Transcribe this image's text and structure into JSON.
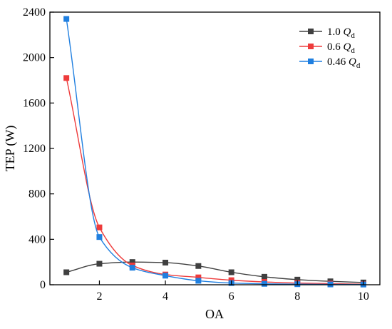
{
  "chart_data": {
    "type": "line",
    "xlabel": "OA",
    "ylabel": "TEP (W)",
    "xlim": [
      0.5,
      10.5
    ],
    "ylim": [
      0,
      2400
    ],
    "x_ticks": [
      2,
      4,
      6,
      8,
      10
    ],
    "y_ticks": [
      0,
      400,
      800,
      1200,
      1600,
      2000,
      2400
    ],
    "grid": false,
    "legend_position": "top-right",
    "x": [
      1,
      2,
      3,
      4,
      5,
      6,
      7,
      8,
      9,
      10
    ],
    "series": [
      {
        "name": "1.0 Q_d",
        "label_main": "1.0 ",
        "label_q": "Q",
        "label_sub": "d",
        "color": "#404040",
        "values": [
          110,
          185,
          200,
          195,
          165,
          110,
          70,
          45,
          30,
          20
        ]
      },
      {
        "name": "0.6 Q_d",
        "label_main": "0.6 ",
        "label_q": "Q",
        "label_sub": "d",
        "color": "#ee3b3b",
        "values": [
          1820,
          505,
          170,
          90,
          65,
          40,
          25,
          15,
          10,
          5
        ]
      },
      {
        "name": "0.46 Q_d",
        "label_main": "0.46 ",
        "label_q": "Q",
        "label_sub": "d",
        "color": "#1f7fe0",
        "values": [
          2340,
          420,
          150,
          80,
          35,
          15,
          8,
          5,
          3,
          2
        ]
      }
    ]
  }
}
